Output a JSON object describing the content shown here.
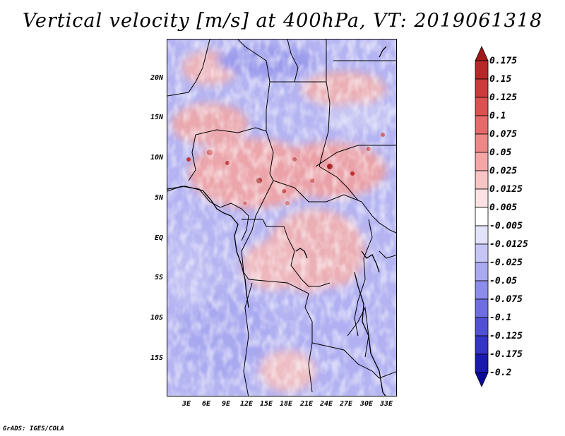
{
  "title": "Vertical velocity [m/s] at 400hPa, VT: 2019061318",
  "footer": "GrADS: IGES/COLA",
  "lat_labels": [
    "20N",
    "15N",
    "10N",
    "5N",
    "EQ",
    "5S",
    "10S",
    "15S"
  ],
  "lon_labels": [
    "3E",
    "6E",
    "9E",
    "12E",
    "15E",
    "18E",
    "21E",
    "24E",
    "27E",
    "30E",
    "33E"
  ],
  "colorbar": {
    "labels": [
      "0.175",
      "0.15",
      "0.125",
      "0.1",
      "0.075",
      "0.05",
      "0.025",
      "0.0125",
      "0.005",
      "-0.005",
      "-0.0125",
      "-0.025",
      "-0.05",
      "-0.075",
      "-0.1",
      "-0.125",
      "-0.175",
      "-0.2"
    ],
    "colors": [
      "#a01818",
      "#b82828",
      "#cc3a3a",
      "#dc5050",
      "#e66a6a",
      "#ee8888",
      "#f4a6a6",
      "#f8c4c4",
      "#fce2e2",
      "#ffffff",
      "#e2e2fa",
      "#c6c6f6",
      "#aaaaf0",
      "#8c8cea",
      "#6e6ee2",
      "#5050d6",
      "#3434c6",
      "#1a1ab0",
      "#0a0a96"
    ]
  }
}
